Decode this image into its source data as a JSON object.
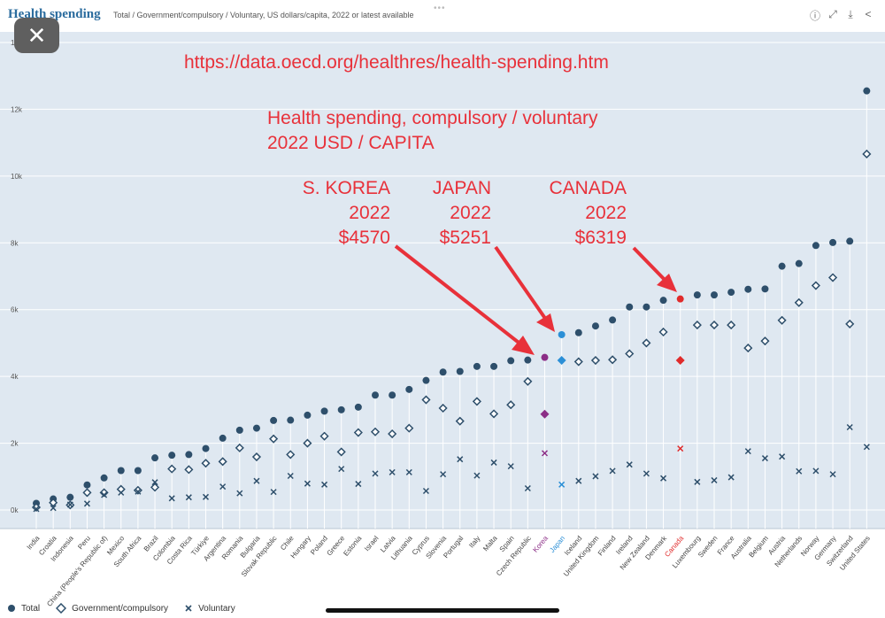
{
  "header": {
    "title": "Health spending",
    "subtitle": "Total / Government/compulsory / Voluntary, US dollars/capita, 2022 or latest available",
    "dots": "•••",
    "icons": [
      "info-icon",
      "expand-icon",
      "download-icon",
      "share-icon"
    ]
  },
  "close_label": "✕",
  "annotations": {
    "url": "https://data.oecd.org/healthres/health-spending.htm",
    "heading_line1": "Health spending, compulsory / voluntary",
    "heading_line2": "2022 USD / CAPITA",
    "korea": {
      "l1": "S. KOREA",
      "l2": "2022",
      "l3": "$4570"
    },
    "japan": {
      "l1": "JAPAN",
      "l2": "2022",
      "l3": "$5251"
    },
    "canada": {
      "l1": "CANADA",
      "l2": "2022",
      "l3": "$6319"
    }
  },
  "legend": {
    "total": "Total",
    "government": "Government/compulsory",
    "voluntary": "Voluntary"
  },
  "colors": {
    "plot_bg": "#dfe8f1",
    "marker": "#2e4f6b",
    "korea": "#8b2d86",
    "japan": "#2b8fd6",
    "canada": "#e02b2b",
    "annotation": "#e8313a"
  },
  "chart_data": {
    "type": "scatter",
    "title": "Health spending",
    "xlabel": "",
    "ylabel": "",
    "ylim": [
      0,
      14000
    ],
    "y_ticks": [
      0,
      2000,
      4000,
      6000,
      8000,
      10000,
      12000,
      14000
    ],
    "y_tick_labels": [
      "0k",
      "2k",
      "4k",
      "6k",
      "8k",
      "10k",
      "12k",
      "14k"
    ],
    "categories": [
      "India",
      "Croatia",
      "Indonesia",
      "Peru",
      "China (People's Republic of)",
      "Mexico",
      "South Africa",
      "Brazil",
      "Colombia",
      "Costa Rica",
      "Türkiye",
      "Argentina",
      "Romania",
      "Bulgaria",
      "Slovak Republic",
      "Chile",
      "Hungary",
      "Poland",
      "Greece",
      "Estonia",
      "Israel",
      "Latvia",
      "Lithuania",
      "Cyprus",
      "Slovenia",
      "Portugal",
      "Italy",
      "Malta",
      "Spain",
      "Czech Republic",
      "Korea",
      "Japan",
      "Iceland",
      "United Kingdom",
      "Finland",
      "Ireland",
      "New Zealand",
      "Denmark",
      "Canada",
      "Luxembourg",
      "Sweden",
      "France",
      "Australia",
      "Belgium",
      "Austria",
      "Netherlands",
      "Norway",
      "Germany",
      "Switzerland",
      "United States"
    ],
    "highlight": {
      "Korea": "korea",
      "Japan": "japan",
      "Canada": "canada"
    },
    "series": [
      {
        "name": "Total",
        "values": [
          200,
          330,
          380,
          750,
          960,
          1180,
          1180,
          1560,
          1640,
          1660,
          1840,
          2150,
          2390,
          2450,
          2680,
          2690,
          2840,
          2960,
          3000,
          3080,
          3440,
          3440,
          3610,
          3880,
          4130,
          4150,
          4300,
          4300,
          4470,
          4490,
          4570,
          5251,
          5310,
          5510,
          5690,
          6080,
          6080,
          6280,
          6319,
          6440,
          6440,
          6520,
          6610,
          6620,
          7300,
          7380,
          7920,
          8010,
          8050,
          12550
        ]
      },
      {
        "name": "Government/compulsory",
        "values": [
          80,
          220,
          150,
          520,
          520,
          620,
          590,
          680,
          1230,
          1210,
          1400,
          1450,
          1860,
          1590,
          2130,
          1660,
          2000,
          2210,
          1740,
          2320,
          2340,
          2280,
          2450,
          3300,
          3050,
          2660,
          3250,
          2880,
          3150,
          3850,
          2870,
          4480,
          4440,
          4480,
          4500,
          4680,
          5000,
          5330,
          4480,
          5540,
          5540,
          5540,
          4850,
          5060,
          5680,
          6210,
          6720,
          6960,
          5570,
          10660
        ]
      },
      {
        "name": "Voluntary",
        "values": [
          30,
          60,
          160,
          190,
          450,
          520,
          550,
          830,
          350,
          380,
          390,
          700,
          500,
          870,
          540,
          1020,
          790,
          760,
          1230,
          780,
          1090,
          1130,
          1130,
          570,
          1070,
          1520,
          1030,
          1420,
          1310,
          650,
          1700,
          760,
          870,
          1010,
          1170,
          1360,
          1090,
          950,
          1840,
          840,
          890,
          980,
          1760,
          1550,
          1600,
          1160,
          1170,
          1070,
          2480,
          1890
        ]
      }
    ]
  }
}
